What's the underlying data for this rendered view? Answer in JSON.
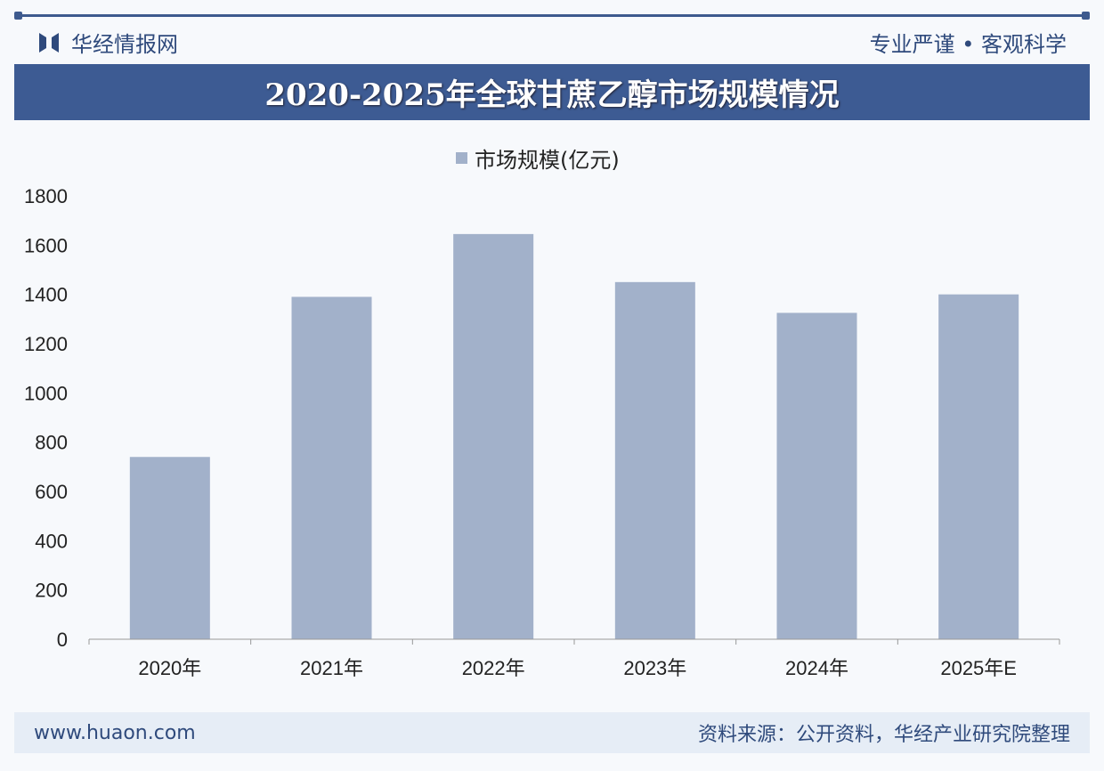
{
  "header": {
    "brand": "华经情报网",
    "slogan": "专业严谨 • 客观科学"
  },
  "watermark": {
    "name": "华经产业研究院",
    "url": "www.huaon.com"
  },
  "footer": {
    "website": "www.huaon.com",
    "source": "资料来源：公开资料，华经产业研究院整理"
  },
  "colors": {
    "bar": "#a2b1ca",
    "banner": "#3d5b93"
  },
  "chart_data": {
    "type": "bar",
    "title": "2020-2025年全球甘蔗乙醇市场规模情况",
    "legend": "市场规模(亿元)",
    "legend_position": "top-center",
    "categories": [
      "2020年",
      "2021年",
      "2022年",
      "2023年",
      "2024年",
      "2025年E"
    ],
    "values": [
      740,
      1390,
      1645,
      1450,
      1325,
      1400
    ],
    "ylim": [
      0,
      1800
    ],
    "yticks": [
      "0",
      "200",
      "400",
      "600",
      "800",
      "1000",
      "1200",
      "1400",
      "1600",
      "1800"
    ],
    "xlabel": "",
    "ylabel": "",
    "grid": false
  }
}
